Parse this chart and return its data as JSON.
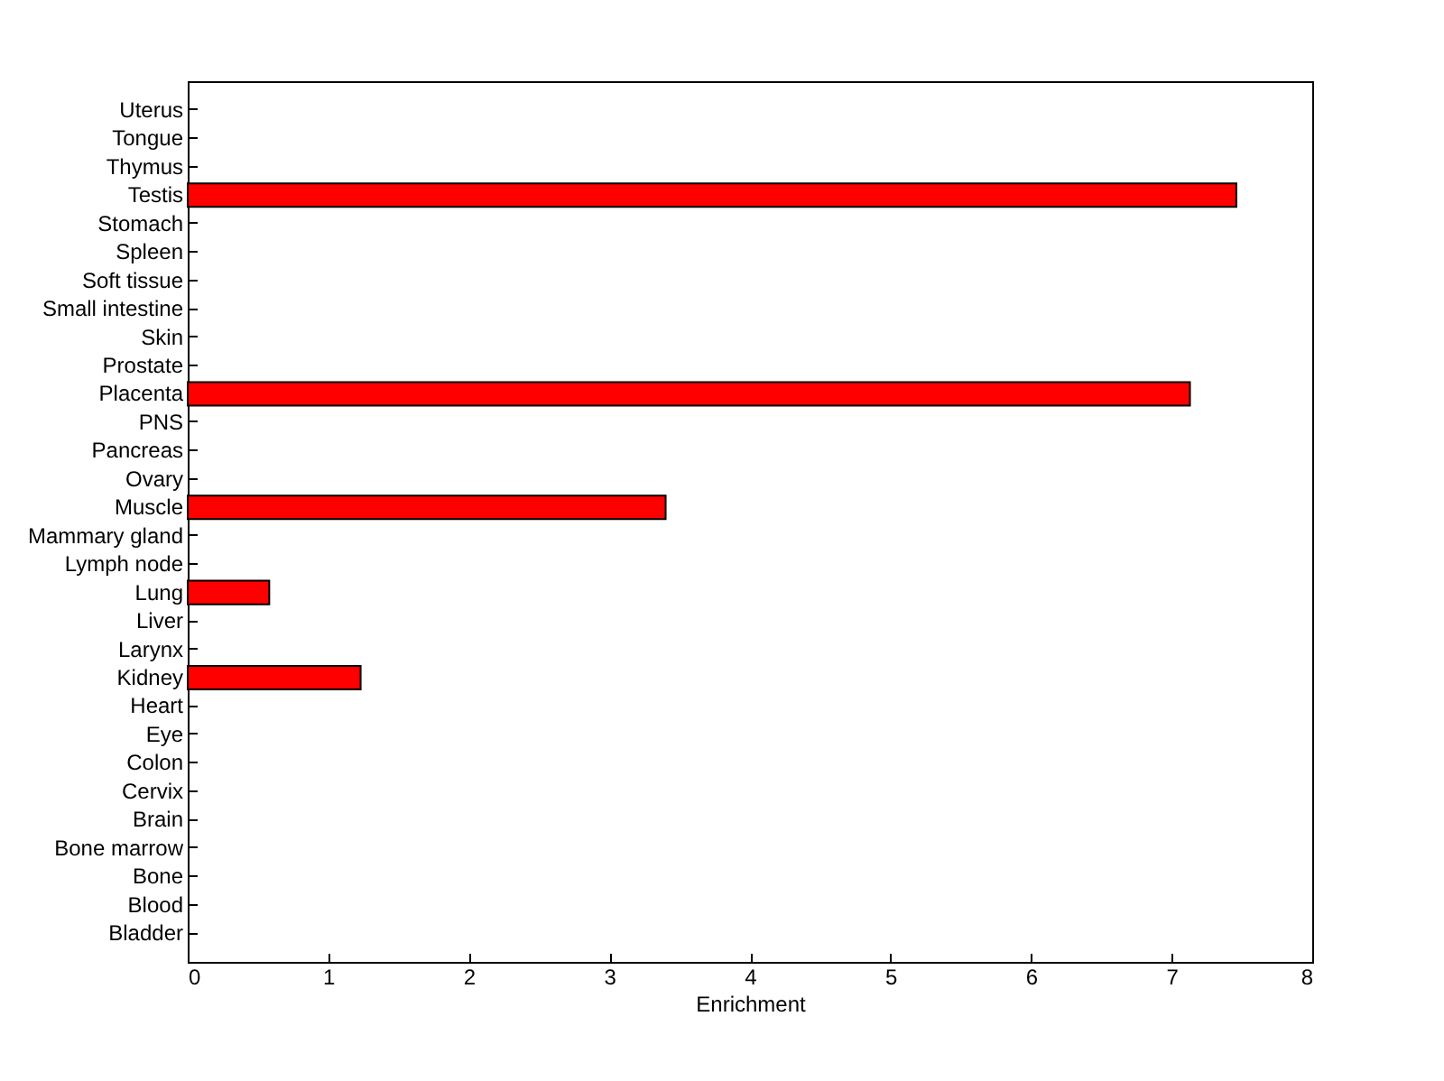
{
  "chart_data": {
    "type": "bar",
    "orientation": "horizontal",
    "xlabel": "Enrichment",
    "categories": [
      "Uterus",
      "Tongue",
      "Thymus",
      "Testis",
      "Stomach",
      "Spleen",
      "Soft tissue",
      "Small intestine",
      "Skin",
      "Prostate",
      "Placenta",
      "PNS",
      "Pancreas",
      "Ovary",
      "Muscle",
      "Mammary gland",
      "Lymph node",
      "Lung",
      "Liver",
      "Larynx",
      "Kidney",
      "Heart",
      "Eye",
      "Colon",
      "Cervix",
      "Brain",
      "Bone marrow",
      "Bone",
      "Blood",
      "Bladder"
    ],
    "values": [
      0,
      0,
      0,
      7.46,
      0,
      0,
      0,
      0,
      0,
      0,
      7.13,
      0,
      0,
      0,
      3.4,
      0,
      0,
      0.58,
      0,
      0,
      1.23,
      0,
      0,
      0,
      0,
      0,
      0,
      0,
      0,
      0
    ],
    "color": "#ff0000",
    "xlim": [
      0,
      8
    ],
    "xticks": [
      0,
      1,
      2,
      3,
      4,
      5,
      6,
      7,
      8
    ],
    "grid": false
  }
}
